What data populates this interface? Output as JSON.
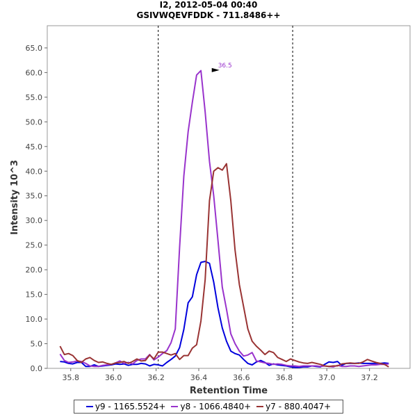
{
  "chart_data": {
    "type": "line",
    "title": "I2, 2012-05-04 00:40",
    "subtitle": "GSIVWQEVFDDK - 711.8486++",
    "xlabel": "Retention Time",
    "ylabel": "Intensity 10^3",
    "xlim": [
      35.69,
      37.39
    ],
    "ylim": [
      0,
      69.5
    ],
    "x_ticks": [
      "35.8",
      "36.0",
      "36.2",
      "36.4",
      "36.6",
      "36.8",
      "37.0",
      "37.2"
    ],
    "y_ticks": [
      "0.0",
      "5.0",
      "10.0",
      "15.0",
      "20.0",
      "25.0",
      "30.0",
      "35.0",
      "40.0",
      "45.0",
      "50.0",
      "55.0",
      "60.0",
      "65.0"
    ],
    "integration_bounds": [
      36.21,
      36.84
    ],
    "peak_annotation": {
      "x": 36.5,
      "y": 60.5,
      "label": "36.5"
    },
    "x": [
      35.75,
      35.77,
      35.79,
      35.81,
      35.83,
      35.85,
      35.87,
      35.89,
      35.91,
      35.93,
      35.95,
      35.97,
      35.99,
      36.01,
      36.03,
      36.05,
      36.07,
      36.09,
      36.11,
      36.13,
      36.15,
      36.17,
      36.19,
      36.21,
      36.23,
      36.25,
      36.27,
      36.29,
      36.31,
      36.33,
      36.35,
      36.37,
      36.39,
      36.41,
      36.43,
      36.45,
      36.47,
      36.49,
      36.51,
      36.53,
      36.55,
      36.57,
      36.59,
      36.61,
      36.63,
      36.65,
      36.67,
      36.69,
      36.71,
      36.73,
      36.75,
      36.77,
      36.79,
      36.81,
      36.83,
      36.85,
      36.87,
      36.89,
      36.91,
      36.93,
      36.95,
      36.97,
      36.99,
      37.01,
      37.03,
      37.05,
      37.07,
      37.09,
      37.11,
      37.13,
      37.15,
      37.17,
      37.19,
      37.21,
      37.23,
      37.25,
      37.27,
      37.29
    ],
    "series": [
      {
        "name": "y9 - 1165.5524+",
        "color": "#0000dd",
        "values": [
          1.4,
          1.3,
          1.0,
          0.9,
          1.2,
          1.2,
          0.4,
          0.4,
          0.7,
          0.4,
          0.5,
          0.6,
          0.7,
          0.9,
          0.8,
          0.9,
          0.6,
          0.8,
          0.8,
          1.0,
          0.9,
          0.5,
          0.8,
          0.7,
          0.5,
          1.2,
          1.8,
          2.5,
          4.2,
          7.9,
          13.3,
          14.5,
          19.0,
          21.5,
          21.7,
          21.3,
          17.5,
          12.3,
          8.2,
          5.5,
          3.5,
          3.0,
          2.7,
          1.8,
          1.0,
          0.7,
          1.3,
          1.6,
          1.2,
          0.6,
          0.9,
          0.7,
          0.6,
          0.5,
          0.3,
          0.2,
          0.2,
          0.3,
          0.3,
          0.5,
          0.4,
          0.3,
          0.8,
          1.3,
          1.2,
          1.4,
          0.6,
          1.0,
          1.0,
          1.0,
          1.1,
          1.0,
          1.0,
          1.0,
          1.0,
          1.0,
          1.1,
          1.0
        ]
      },
      {
        "name": "y8 - 1066.4840+",
        "color": "#9933cc",
        "values": [
          2.9,
          1.6,
          1.2,
          1.3,
          1.5,
          1.4,
          1.0,
          0.5,
          0.4,
          0.4,
          0.6,
          0.7,
          0.8,
          1.1,
          1.5,
          1.0,
          1.2,
          0.9,
          1.6,
          1.9,
          1.9,
          2.8,
          1.7,
          2.3,
          3.0,
          3.6,
          5.2,
          8.0,
          24.5,
          39.0,
          48.0,
          54.0,
          59.5,
          60.4,
          52.0,
          42.0,
          35.0,
          26.0,
          16.5,
          12.0,
          7.0,
          5.0,
          3.5,
          2.5,
          2.7,
          3.2,
          1.5,
          1.3,
          1.1,
          1.0,
          0.8,
          0.9,
          0.8,
          0.6,
          0.5,
          0.5,
          0.4,
          0.5,
          0.5,
          0.5,
          0.5,
          0.4,
          0.5,
          0.4,
          0.3,
          0.6,
          0.4,
          0.4,
          0.5,
          0.5,
          0.4,
          0.5,
          0.6,
          0.7,
          0.7,
          0.8,
          0.8,
          0.9
        ]
      },
      {
        "name": "y7 - 880.4047+",
        "color": "#993333",
        "values": [
          4.5,
          2.8,
          3.0,
          2.6,
          1.6,
          1.2,
          1.9,
          2.2,
          1.6,
          1.2,
          1.3,
          1.0,
          0.8,
          1.1,
          1.2,
          1.4,
          1.0,
          1.4,
          1.9,
          1.5,
          1.6,
          2.7,
          1.9,
          3.3,
          3.3,
          3.0,
          2.7,
          3.0,
          1.8,
          2.6,
          2.6,
          4.1,
          4.8,
          9.6,
          18.0,
          34.0,
          40.0,
          40.7,
          40.2,
          41.5,
          34.0,
          24.0,
          17.0,
          12.5,
          8.0,
          5.5,
          4.5,
          3.7,
          2.8,
          3.5,
          3.2,
          2.2,
          1.8,
          1.4,
          1.9,
          1.6,
          1.3,
          1.1,
          1.0,
          1.2,
          1.0,
          0.8,
          0.5,
          0.4,
          0.5,
          0.5,
          0.9,
          1.0,
          1.1,
          1.0,
          1.0,
          1.3,
          1.8,
          1.5,
          1.2,
          1.0,
          0.8,
          0.3
        ]
      }
    ]
  }
}
